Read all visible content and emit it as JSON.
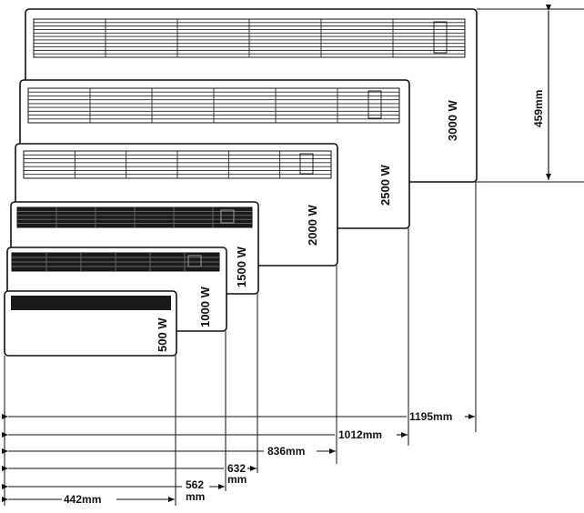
{
  "heaters": [
    {
      "power_label": "3000 W"
    },
    {
      "power_label": "2500 W"
    },
    {
      "power_label": "2000 W"
    },
    {
      "power_label": "1500 W"
    },
    {
      "power_label": "1000 W"
    },
    {
      "power_label": "500 W"
    }
  ],
  "height_dimension": {
    "label": "459mm"
  },
  "width_dimensions": [
    {
      "label": "1195mm"
    },
    {
      "label": "1012mm"
    },
    {
      "label": "836mm"
    },
    {
      "label_line1": "632",
      "label_line2": "mm"
    },
    {
      "label_line1": "562",
      "label_line2": "mm"
    },
    {
      "label": "442mm"
    }
  ],
  "colors": {
    "line": "#111111",
    "panel_fill": "#ffffff",
    "grille_dark": "#1a1a1a"
  }
}
